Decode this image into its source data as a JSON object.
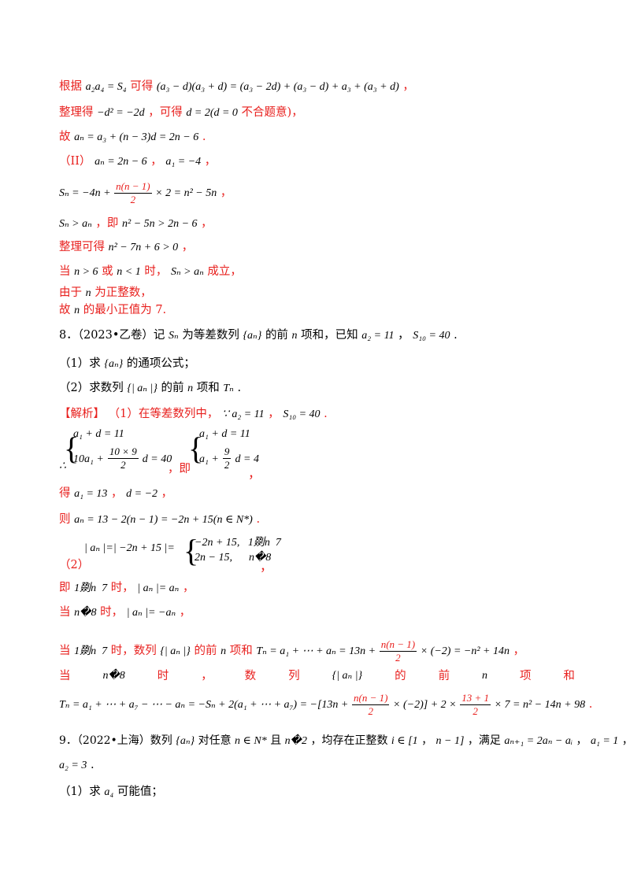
{
  "lines": {
    "l1": {
      "text": "根据",
      "math": "a₂a₄ = S₄",
      "text2": "可得",
      "math2": "(a₃ − d)(a₃ + d) = (a₃ − 2d) + (a₃ − d) + a₃ + (a₃ + d)",
      "tail": "，"
    },
    "l2": {
      "text": "整理得",
      "math": "−d² = −2d",
      "text2": "，可得",
      "math2": "d = 2(d = 0",
      "text3": "不合题意)，"
    },
    "l3": {
      "text": "故",
      "math": "aₙ = a₃ + (n − 3)d = 2n − 6",
      "tail": "."
    },
    "l4": {
      "text": "（II）",
      "math": "aₙ = 2n − 6",
      "text2": "，",
      "math2": "a₁ = −4",
      "tail": "，"
    },
    "l5": {
      "math_a": "Sₙ = −4n +",
      "frac_n": "n(n − 1)",
      "frac_d": "2",
      "math_b": "× 2 = n² − 5n",
      "tail": "，"
    },
    "l6": {
      "math": "Sₙ > aₙ",
      "text": "，即",
      "math2": "n² − 5n > 2n − 6",
      "tail": "，"
    },
    "l7": {
      "text": "整理可得",
      "math": "n² − 7n + 6 > 0",
      "tail": "，"
    },
    "l8": {
      "text": "当",
      "math": "n > 6",
      "text2": "或",
      "math2": "n < 1",
      "text3": "时，",
      "math3": "Sₙ > aₙ",
      "text4": "成立，"
    },
    "l9": {
      "text": "由于",
      "math": "n",
      "text2": "为正整数，"
    },
    "l10": {
      "text": "故",
      "math": "n",
      "text2": "的最小正值为 7."
    },
    "l11": {
      "text": "8．（2023•乙卷）记",
      "math": "Sₙ",
      "text2": "为等差数列",
      "math2": "{aₙ}",
      "text3": "的前",
      "math3": "n",
      "text4": "项和，已知",
      "math4": "a₂ = 11",
      "text5": "，",
      "math5": "S₁₀ = 40",
      "tail": "."
    },
    "l12": {
      "text": "（1）求",
      "math": "{aₙ}",
      "text2": "的通项公式；"
    },
    "l13": {
      "text": "（2）求数列",
      "math": "{| aₙ |}",
      "text2": "的前",
      "math2": "n",
      "text3": "项和",
      "math3": "Tₙ",
      "tail": "."
    },
    "l14": {
      "tag": "【解析】",
      "text": "（1）在等差数列中，",
      "math": "∵ a₂ = 11",
      "text2": "，",
      "math2": "S₁₀ = 40",
      "tail": "."
    },
    "l15": {
      "row1": "a₁ + d = 11",
      "row2a": "10a₁ +",
      "row2_fn": "10 × 9",
      "row2_fd": "2",
      "row2b": "d = 40",
      "therefore": "∴",
      "text": "，即",
      "row3": "a₁ + d = 11",
      "row4a": "a₁ +",
      "row4_fn": "9",
      "row4_fd": "2",
      "row4b": "d = 4",
      "tail": "，"
    },
    "l16": {
      "text": "得",
      "math": "a₁ = 13",
      "text2": "，",
      "math2": "d = −2",
      "tail": "，"
    },
    "l17": {
      "text": "则",
      "math": "aₙ = 13 − 2(n − 1) = −2n + 15(n ∈ N*)",
      "tail": "."
    },
    "l18": {
      "label": "（2）",
      "math": "| aₙ |=| −2n + 15 |=",
      "row1": "−2n + 15,   1剟n  7",
      "row2": "2n − 15,      n�8",
      "tail": "，"
    },
    "l19": {
      "text": "即",
      "math": "1剟n  7",
      "text2": "时，",
      "math2": "| aₙ |= aₙ",
      "tail": "，"
    },
    "l20": {
      "text": "当",
      "math": "n�8",
      "text2": "时，",
      "math2": "| aₙ |= −aₙ",
      "tail": "，"
    },
    "l21": {
      "text": "当",
      "math": "1剟n  7",
      "text2": "时，数列",
      "math2": "{| aₙ |}",
      "text3": "的前",
      "math3": "n",
      "text4": "项和",
      "math4a": "Tₙ = a₁ + ⋯ + aₙ = 13n +",
      "frac_n": "n(n − 1)",
      "frac_d": "2",
      "math4b": "× (−2) = −n² + 14n",
      "tail": "，"
    },
    "l22": {
      "w1": "当",
      "w2": "n�8",
      "w3": "时",
      "w4": "，",
      "w5": "数",
      "w6": "列",
      "w7": "{| aₙ |}",
      "w8": "的",
      "w9": "前",
      "w10": "n",
      "w11": "项",
      "w12": "和"
    },
    "l23": {
      "math_a": "Tₙ = a₁ + ⋯ + a₇ − ⋯ − aₙ = −Sₙ + 2(a₁ + ⋯ + a₇) = −[13n +",
      "frac_n": "n(n − 1)",
      "frac_d": "2",
      "math_b": "× (−2)] + 2 ×",
      "frac2_n": "13 + 1",
      "frac2_d": "2",
      "math_c": "× 7 = n² − 14n + 98",
      "tail": "."
    },
    "l24": {
      "text": "9．（2022•上海）数列",
      "math": "{aₙ}",
      "text2": "对任意",
      "math2": "n ∈ N*",
      "text3": "且",
      "math3": "n�2",
      "text4": "，均存在正整数",
      "math4": "i ∈ [1",
      "text5": "，",
      "math5": "n − 1]",
      "text6": "，满足",
      "math6": "aₙ₊₁ = 2aₙ − aᵢ",
      "text7": "，",
      "math7": "a₁ = 1",
      "tail": "，"
    },
    "l25": {
      "math": "a₂ = 3",
      "tail": "."
    },
    "l26": {
      "text": "（1）求",
      "math": "a₄",
      "text2": "可能值；"
    }
  },
  "colors": {
    "answer": "#e8201e",
    "question": "#000000"
  }
}
